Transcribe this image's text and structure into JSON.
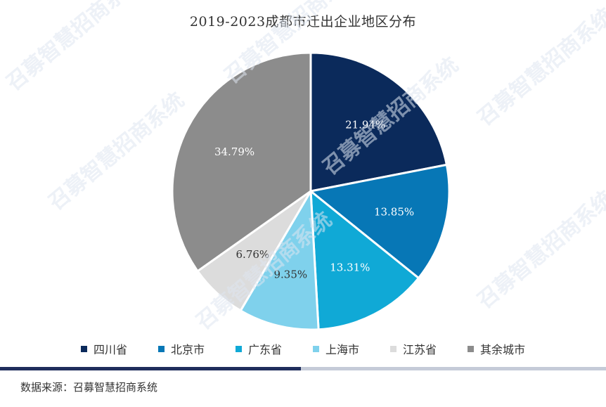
{
  "chart_data": {
    "type": "pie",
    "title": "2019-2023成都市迁出企业地区分布",
    "categories": [
      "四川省",
      "北京市",
      "广东省",
      "上海市",
      "江苏省",
      "其余城市"
    ],
    "values": [
      21.94,
      13.85,
      13.31,
      9.35,
      6.76,
      34.79
    ],
    "labels": [
      "21.94%",
      "13.85%",
      "13.31%",
      "9.35%",
      "6.76%",
      "34.79%"
    ],
    "colors": [
      "#0b2a5b",
      "#0777b6",
      "#10a9d6",
      "#7fd1ec",
      "#dcdcdc",
      "#8c8c8c"
    ],
    "label_colors": [
      "#ffffff",
      "#ffffff",
      "#ffffff",
      "#333333",
      "#333333",
      "#ffffff"
    ],
    "legend_position": "bottom"
  },
  "source": "数据来源：召募智慧招商系统",
  "watermark": "召募智慧招商系统"
}
